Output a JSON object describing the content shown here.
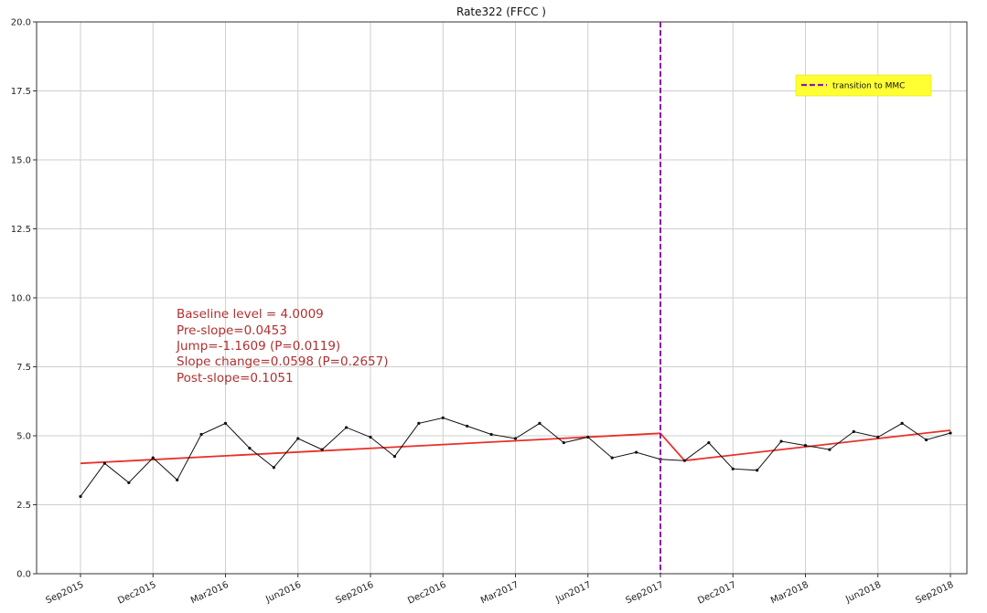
{
  "chart_data": {
    "type": "line",
    "title": "Rate322 (FFCC )",
    "xlabel": "",
    "ylabel": "",
    "ylim": [
      0,
      20
    ],
    "yticks": [
      "0.0",
      "2.5",
      "5.0",
      "7.5",
      "10.0",
      "12.5",
      "15.0",
      "17.5",
      "20.0"
    ],
    "xticks": [
      "Sep2015",
      "Dec2015",
      "Mar2016",
      "Jun2016",
      "Sep2016",
      "Dec2016",
      "Mar2017",
      "Jun2017",
      "Sep2017",
      "Dec2017",
      "Mar2018",
      "Jun2018",
      "Sep2018"
    ],
    "grid": true,
    "legend_position": "top-right",
    "series": [
      {
        "kind": "observed",
        "color": "#111111",
        "x": [
          "Sep2015",
          "Oct2015",
          "Nov2015",
          "Dec2015",
          "Jan2016",
          "Feb2016",
          "Mar2016",
          "Apr2016",
          "May2016",
          "Jun2016",
          "Jul2016",
          "Aug2016",
          "Sep2016",
          "Oct2016",
          "Nov2016",
          "Dec2016",
          "Jan2017",
          "Feb2017",
          "Mar2017",
          "Apr2017",
          "May2017",
          "Jun2017",
          "Jul2017",
          "Aug2017",
          "Sep2017",
          "Oct2017",
          "Nov2017",
          "Dec2017",
          "Jan2018",
          "Feb2018",
          "Mar2018",
          "Apr2018",
          "May2018",
          "Jun2018",
          "Jul2018",
          "Aug2018",
          "Sep2018"
        ],
        "values": [
          2.8,
          4.0,
          3.3,
          4.2,
          3.4,
          5.05,
          5.45,
          4.55,
          3.85,
          4.9,
          4.5,
          5.3,
          4.95,
          4.25,
          5.45,
          5.65,
          5.35,
          5.05,
          4.9,
          5.45,
          4.75,
          4.95,
          4.2,
          4.4,
          4.15,
          4.1,
          4.75,
          3.8,
          3.75,
          4.8,
          4.65,
          4.5,
          5.15,
          4.95,
          5.45,
          4.85,
          5.1
        ]
      },
      {
        "kind": "fitted",
        "color": "#e8302a",
        "segments": [
          {
            "x": [
              "Sep2015",
              "Sep2017"
            ],
            "values": [
              4.0009,
              5.09
            ]
          },
          {
            "x": [
              "Sep2017",
              "Oct2017",
              "Sep2018"
            ],
            "values": [
              5.09,
              4.1,
              5.2
            ]
          }
        ]
      }
    ],
    "vline": {
      "x": "Sep2017",
      "color": "#8b1aa8",
      "label": "transition to MMC"
    },
    "annotations": [
      "Baseline level = 4.0009",
      "Pre-slope=0.0453",
      "Jump=-1.1609 (P=0.0119)",
      "Slope change=0.0598 (P=0.2657)",
      "Post-slope=0.1051"
    ],
    "legend": {
      "label": "transition to MMC",
      "background": "#ffff33"
    }
  }
}
